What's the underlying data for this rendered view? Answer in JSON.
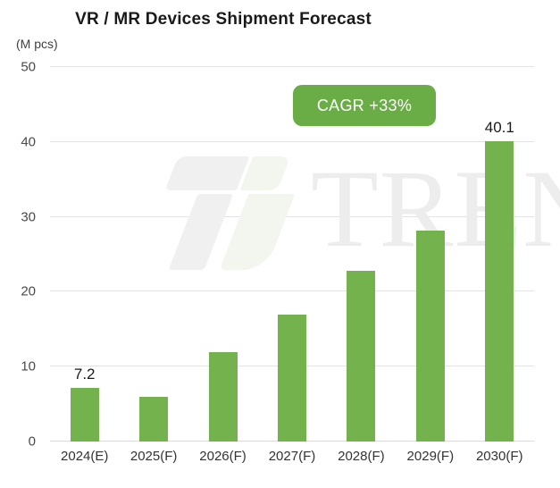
{
  "chart": {
    "title": "VR / MR Devices Shipment Forecast",
    "unit_label": "(M pcs)",
    "badge_label": "CAGR +33%",
    "watermark_text": "TREN",
    "colors": {
      "bar": "#74b24d",
      "badge_bg": "#6aad47",
      "badge_text": "#ffffff",
      "grid": "#e3e3e3",
      "watermark_text": "#ededed",
      "watermark_gray": "#f0f0f1",
      "watermark_green": "#f3f6ee"
    }
  },
  "chart_data": {
    "type": "bar",
    "title": "VR / MR Devices Shipment Forecast",
    "ylabel": "(M pcs)",
    "xlabel": "",
    "categories": [
      "2024(E)",
      "2025(F)",
      "2026(F)",
      "2027(F)",
      "2028(F)",
      "2029(F)",
      "2030(F)"
    ],
    "values": [
      7.2,
      6.0,
      11.9,
      17.0,
      22.8,
      28.2,
      40.1
    ],
    "data_labels": [
      "7.2",
      null,
      null,
      null,
      null,
      null,
      "40.1"
    ],
    "y_ticks": [
      0,
      10,
      20,
      30,
      40,
      50
    ],
    "ylim": [
      0,
      50
    ],
    "grid": true,
    "legend_position": "none",
    "annotation": "CAGR +33%",
    "bar_color": "#74b24d"
  }
}
